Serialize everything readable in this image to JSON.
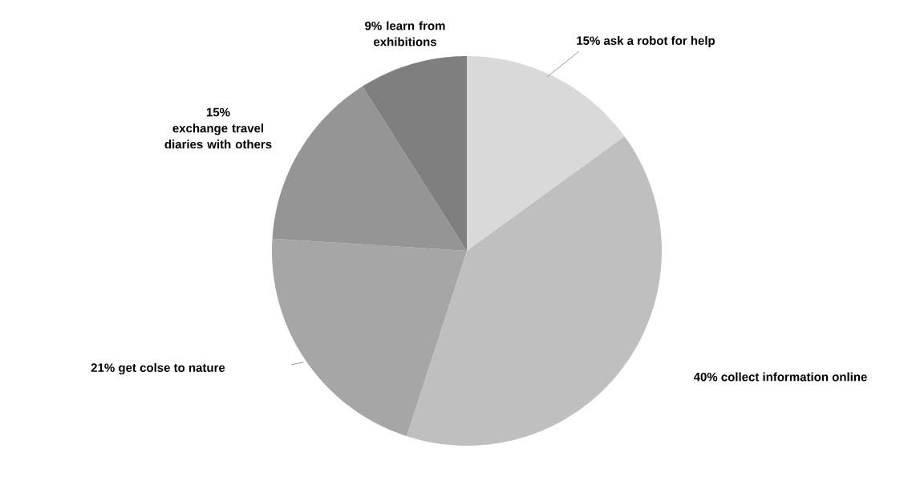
{
  "chart_data": {
    "type": "pie",
    "categories": [
      "ask a robot for help",
      "collect information online",
      "get colse to nature",
      "exchange travel diaries with others",
      "learn from exhibitions"
    ],
    "values": [
      15,
      40,
      21,
      15,
      9
    ],
    "value_labels": [
      "15%",
      "40%",
      "21%",
      "15%",
      "9%"
    ],
    "colors": [
      "#d9d9d9",
      "#bfbfbf",
      "#a6a6a6",
      "#959595",
      "#7f7f7f"
    ]
  }
}
